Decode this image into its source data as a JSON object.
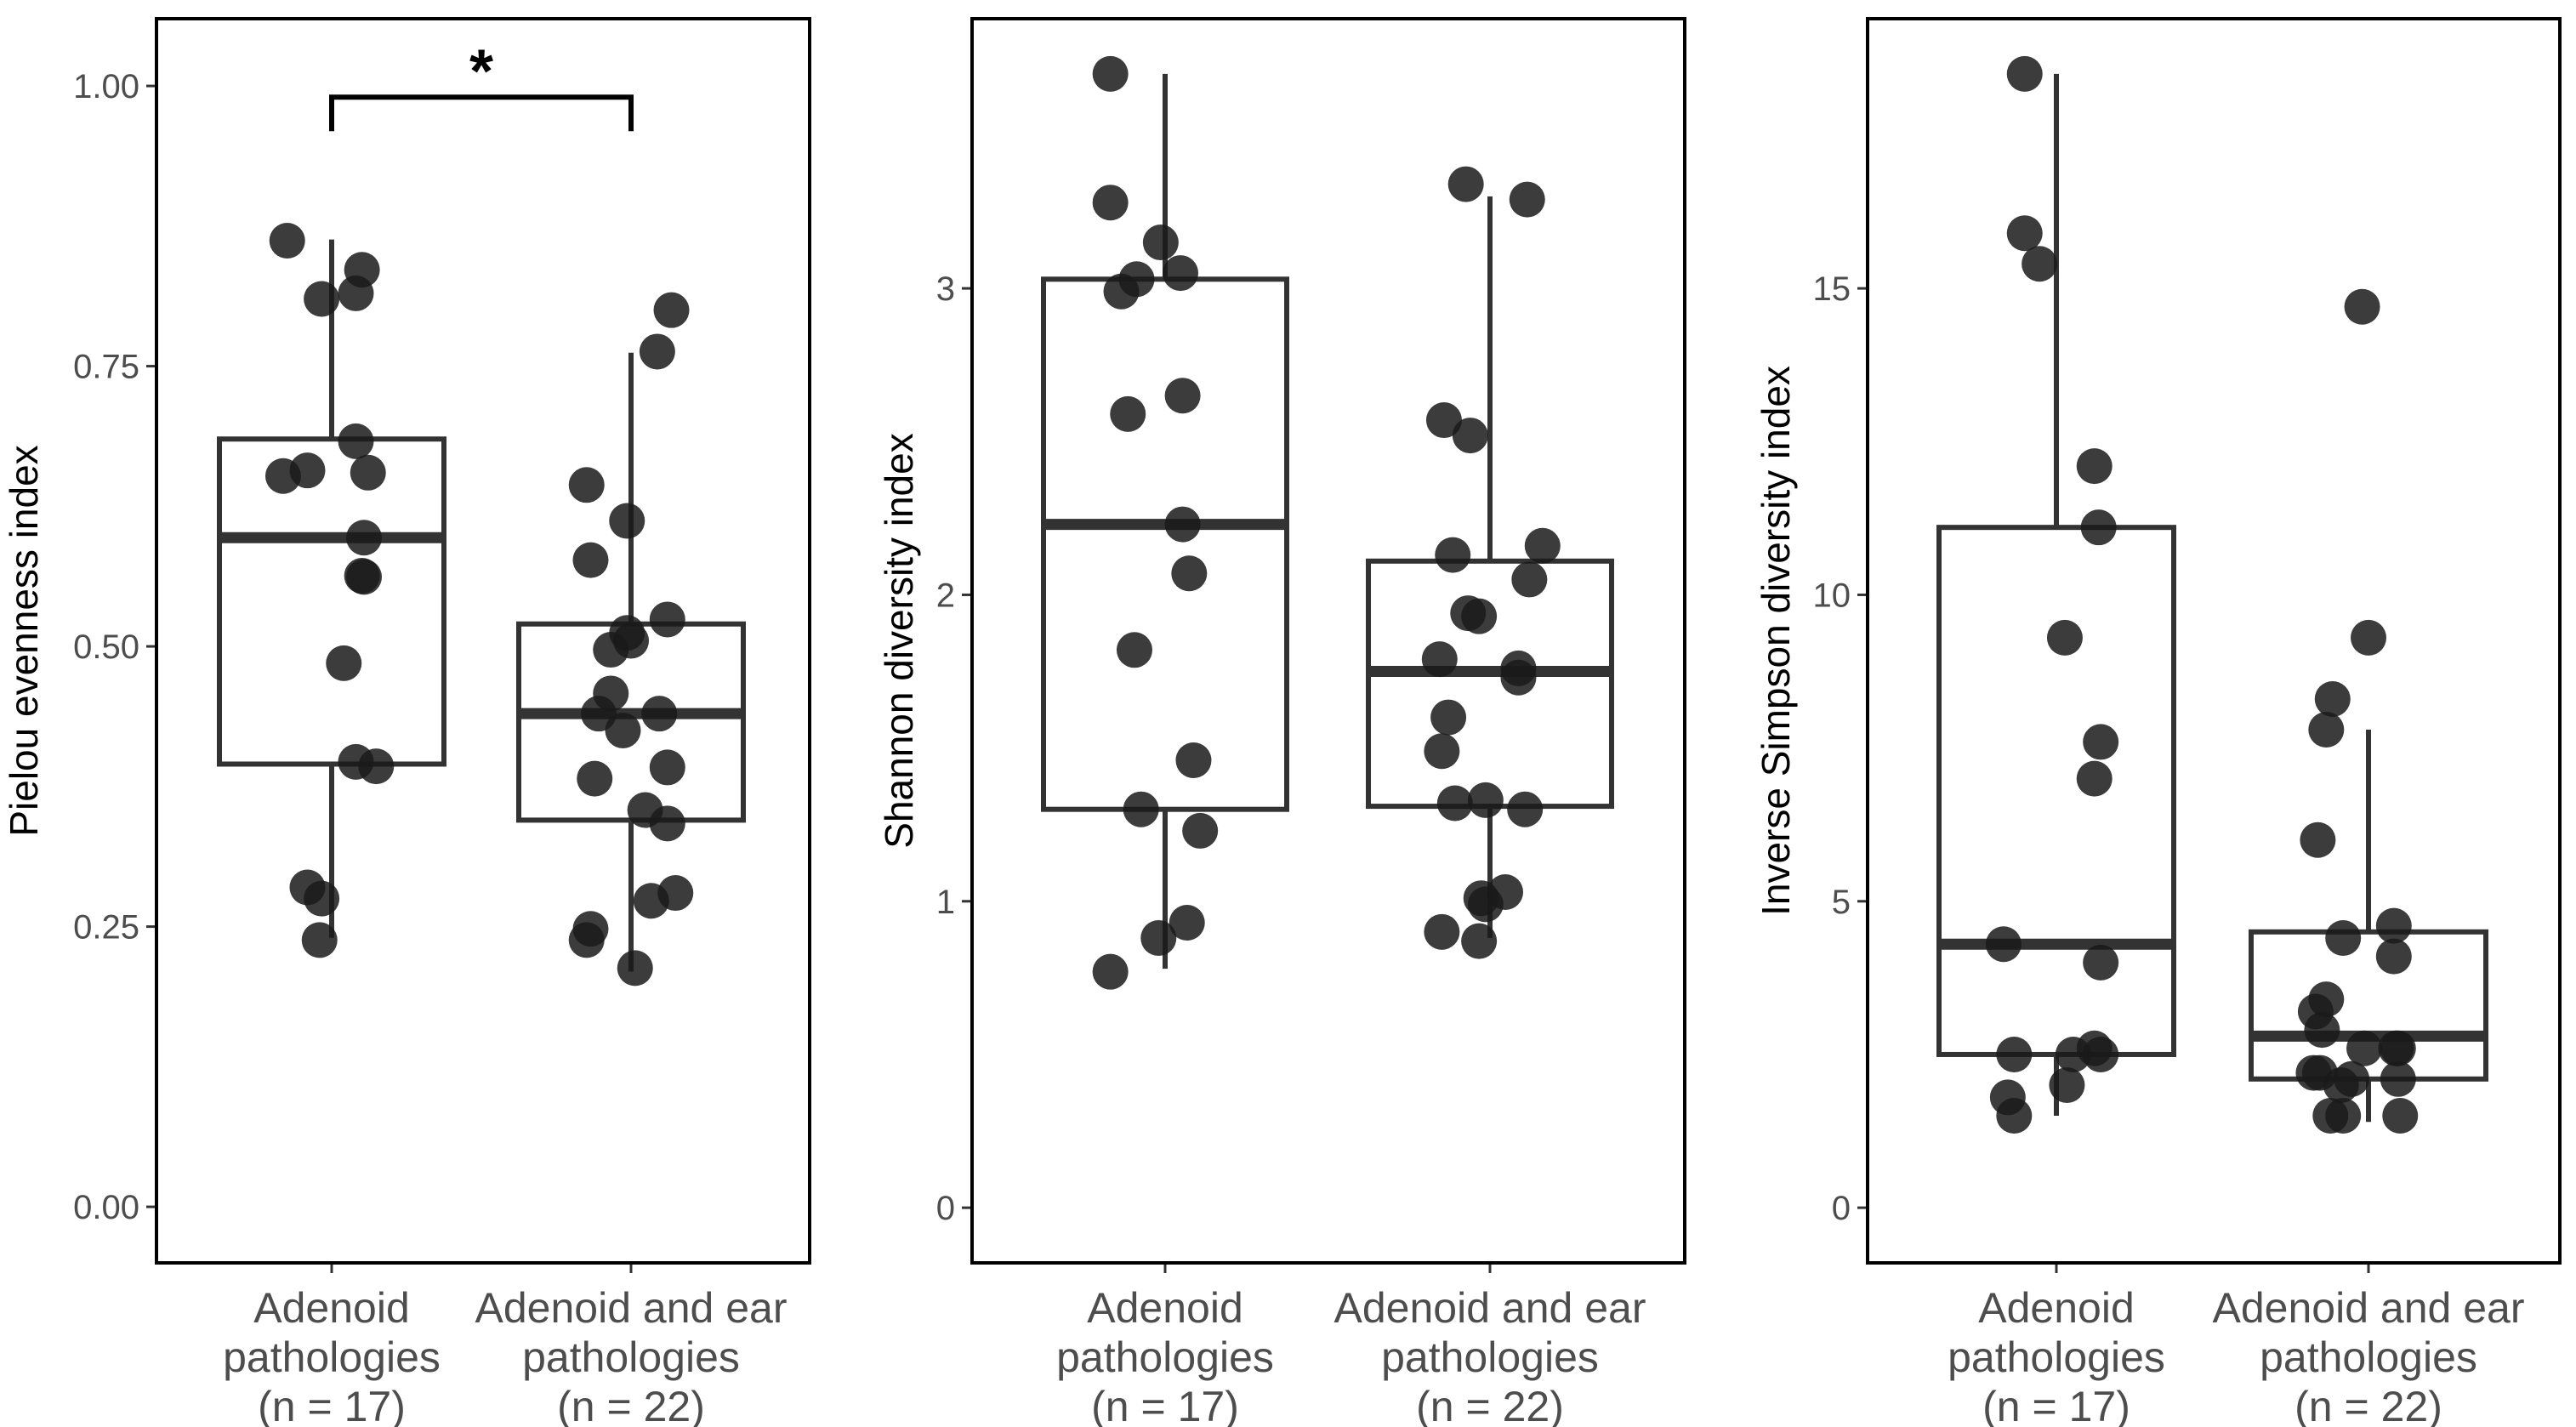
{
  "colors": {
    "box": "#333333",
    "point": "#1a1a1a",
    "panel_border": "#000000",
    "tick": "#333333"
  },
  "chart_data": [
    {
      "type": "boxplot",
      "ylabel": "Pielou evenness index",
      "ylim": [
        -0.05,
        1.06
      ],
      "yticks": [
        0.0,
        0.25,
        0.5,
        0.75,
        1.0
      ],
      "ytick_labels": [
        "0.00",
        "0.25",
        "0.50",
        "0.75",
        "1.00"
      ],
      "groups": [
        {
          "label_lines": [
            "Adenoid",
            "pathologies",
            "(n = 17)"
          ],
          "box": {
            "whisker_low": 0.24,
            "q1": 0.395,
            "median": 0.597,
            "q3": 0.685,
            "whisker_high": 0.863
          },
          "points": [
            [
              -0.22,
              0.862
            ],
            [
              -0.05,
              0.81
            ],
            [
              0.15,
              0.836
            ],
            [
              0.12,
              0.815
            ],
            [
              -0.24,
              0.652
            ],
            [
              -0.12,
              0.657
            ],
            [
              0.12,
              0.683
            ],
            [
              0.18,
              0.655
            ],
            [
              0.16,
              0.597
            ],
            [
              0.16,
              0.562
            ],
            [
              0.06,
              0.485
            ],
            [
              0.12,
              0.397
            ],
            [
              0.22,
              0.393
            ],
            [
              -0.12,
              0.285
            ],
            [
              -0.05,
              0.275
            ],
            [
              -0.06,
              0.238
            ],
            [
              0.15,
              0.563
            ]
          ]
        },
        {
          "label_lines": [
            "Adenoid and ear",
            "pathologies",
            "(n = 22)"
          ],
          "box": {
            "whisker_low": 0.21,
            "q1": 0.345,
            "median": 0.44,
            "q3": 0.52,
            "whisker_high": 0.762
          },
          "points": [
            [
              0.2,
              0.8
            ],
            [
              0.13,
              0.763
            ],
            [
              -0.22,
              0.644
            ],
            [
              -0.02,
              0.612
            ],
            [
              -0.2,
              0.577
            ],
            [
              0.18,
              0.524
            ],
            [
              -0.02,
              0.512
            ],
            [
              0.0,
              0.505
            ],
            [
              -0.1,
              0.497
            ],
            [
              -0.1,
              0.458
            ],
            [
              -0.16,
              0.44
            ],
            [
              0.14,
              0.44
            ],
            [
              -0.04,
              0.425
            ],
            [
              0.18,
              0.392
            ],
            [
              -0.18,
              0.382
            ],
            [
              0.07,
              0.354
            ],
            [
              0.18,
              0.342
            ],
            [
              0.22,
              0.28
            ],
            [
              0.1,
              0.273
            ],
            [
              -0.2,
              0.248
            ],
            [
              -0.22,
              0.238
            ],
            [
              0.02,
              0.213
            ]
          ]
        }
      ],
      "significance": {
        "label": "*",
        "y": 0.99
      }
    },
    {
      "type": "boxplot",
      "ylabel": "Shannon diversity index",
      "ylim": [
        -0.18,
        3.88
      ],
      "yticks": [
        0,
        1,
        2,
        3
      ],
      "ytick_labels": [
        "0",
        "1",
        "2",
        "3"
      ],
      "groups": [
        {
          "label_lines": [
            "Adenoid",
            "pathologies",
            "(n = 17)"
          ],
          "box": {
            "whisker_low": 0.78,
            "q1": 1.3,
            "median": 2.23,
            "q3": 3.03,
            "whisker_high": 3.7
          },
          "points": [
            [
              -0.25,
              3.7
            ],
            [
              -0.25,
              3.28
            ],
            [
              -0.02,
              3.15
            ],
            [
              0.07,
              3.05
            ],
            [
              -0.13,
              3.03
            ],
            [
              -0.2,
              2.99
            ],
            [
              0.08,
              2.65
            ],
            [
              -0.17,
              2.59
            ],
            [
              0.08,
              2.23
            ],
            [
              0.11,
              2.07
            ],
            [
              -0.14,
              1.82
            ],
            [
              0.13,
              1.46
            ],
            [
              -0.11,
              1.3
            ],
            [
              0.16,
              1.23
            ],
            [
              0.1,
              0.93
            ],
            [
              -0.03,
              0.88
            ],
            [
              -0.25,
              0.77
            ]
          ]
        },
        {
          "label_lines": [
            "Adenoid and ear",
            "pathologies",
            "(n = 22)"
          ],
          "box": {
            "whisker_low": 0.88,
            "q1": 1.31,
            "median": 1.75,
            "q3": 2.11,
            "whisker_high": 3.3
          },
          "points": [
            [
              -0.11,
              3.34
            ],
            [
              0.17,
              3.29
            ],
            [
              -0.21,
              2.57
            ],
            [
              -0.09,
              2.52
            ],
            [
              0.24,
              2.16
            ],
            [
              -0.17,
              2.13
            ],
            [
              0.18,
              2.05
            ],
            [
              -0.1,
              1.94
            ],
            [
              -0.05,
              1.93
            ],
            [
              -0.23,
              1.79
            ],
            [
              0.13,
              1.76
            ],
            [
              0.13,
              1.73
            ],
            [
              -0.19,
              1.6
            ],
            [
              -0.22,
              1.49
            ],
            [
              -0.16,
              1.32
            ],
            [
              -0.02,
              1.33
            ],
            [
              0.16,
              1.3
            ],
            [
              -0.04,
              1.01
            ],
            [
              -0.02,
              0.99
            ],
            [
              0.07,
              1.03
            ],
            [
              -0.22,
              0.9
            ],
            [
              -0.05,
              0.87
            ]
          ]
        }
      ]
    },
    {
      "type": "boxplot",
      "ylabel": "Inverse Simpson diversity index",
      "ylim": [
        -0.9,
        19.4
      ],
      "yticks": [
        0,
        5,
        10,
        15
      ],
      "ytick_labels": [
        "0",
        "5",
        "10",
        "15"
      ],
      "groups": [
        {
          "label_lines": [
            "Adenoid",
            "pathologies",
            "(n = 17)"
          ],
          "box": {
            "whisker_low": 1.5,
            "q1": 2.5,
            "median": 4.3,
            "q3": 11.1,
            "whisker_high": 18.5
          },
          "points": [
            [
              -0.15,
              18.5
            ],
            [
              -0.15,
              15.9
            ],
            [
              -0.08,
              15.4
            ],
            [
              0.18,
              12.1
            ],
            [
              0.2,
              11.1
            ],
            [
              0.04,
              9.3
            ],
            [
              0.21,
              7.6
            ],
            [
              0.18,
              7.0
            ],
            [
              -0.25,
              4.3
            ],
            [
              0.21,
              4.0
            ],
            [
              -0.2,
              2.5
            ],
            [
              0.08,
              2.5
            ],
            [
              0.18,
              2.6
            ],
            [
              0.21,
              2.5
            ],
            [
              -0.23,
              1.8
            ],
            [
              0.05,
              2.0
            ],
            [
              -0.2,
              1.5
            ]
          ]
        },
        {
          "label_lines": [
            "Adenoid and ear",
            "pathologies",
            "(n = 22)"
          ],
          "box": {
            "whisker_low": 1.4,
            "q1": 2.1,
            "median": 2.8,
            "q3": 4.5,
            "whisker_high": 7.8
          },
          "points": [
            [
              -0.03,
              14.7
            ],
            [
              0.0,
              9.3
            ],
            [
              -0.17,
              8.3
            ],
            [
              -0.2,
              7.8
            ],
            [
              -0.24,
              6.0
            ],
            [
              0.12,
              4.6
            ],
            [
              -0.12,
              4.4
            ],
            [
              0.12,
              4.1
            ],
            [
              -0.2,
              3.4
            ],
            [
              -0.25,
              3.2
            ],
            [
              -0.22,
              2.9
            ],
            [
              0.13,
              2.6
            ],
            [
              -0.02,
              2.6
            ],
            [
              0.14,
              2.6
            ],
            [
              -0.26,
              2.2
            ],
            [
              -0.23,
              2.2
            ],
            [
              -0.13,
              2.0
            ],
            [
              -0.08,
              2.1
            ],
            [
              0.14,
              2.1
            ],
            [
              -0.18,
              1.5
            ],
            [
              -0.12,
              1.5
            ],
            [
              0.15,
              1.5
            ]
          ]
        }
      ]
    }
  ]
}
